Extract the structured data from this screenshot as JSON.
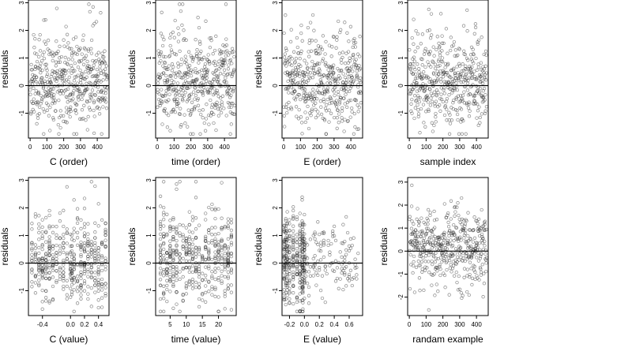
{
  "chart_data": [
    {
      "type": "scatter",
      "xlabel": "C (order)",
      "ylabel": "residuals",
      "xlim": [
        -10,
        470
      ],
      "ylim": [
        -1.9,
        3.1
      ],
      "xticks": [
        0,
        100,
        200,
        300,
        400
      ],
      "xtick_labels": [
        "0",
        "100",
        "200",
        "300",
        "400"
      ],
      "yticks": [
        -1,
        0,
        1,
        2,
        3
      ],
      "ytick_labels": [
        "-1",
        "0",
        "1",
        "2",
        "3"
      ],
      "hline": 0,
      "x_mode": "index",
      "n": 460,
      "seed": 11,
      "x": [],
      "y": []
    },
    {
      "type": "scatter",
      "xlabel": "time (order)",
      "ylabel": "residuals",
      "xlim": [
        -10,
        470
      ],
      "ylim": [
        -1.9,
        3.1
      ],
      "xticks": [
        0,
        100,
        200,
        300,
        400
      ],
      "xtick_labels": [
        "0",
        "100",
        "200",
        "300",
        "400"
      ],
      "yticks": [
        -1,
        0,
        1,
        2,
        3
      ],
      "ytick_labels": [
        "-1",
        "0",
        "1",
        "2",
        "3"
      ],
      "hline": 0,
      "x_mode": "index",
      "n": 460,
      "seed": 23,
      "x": [],
      "y": []
    },
    {
      "type": "scatter",
      "xlabel": "E (order)",
      "ylabel": "residuals",
      "xlim": [
        -10,
        470
      ],
      "ylim": [
        -1.9,
        3.1
      ],
      "xticks": [
        0,
        100,
        200,
        300,
        400
      ],
      "xtick_labels": [
        "0",
        "100",
        "200",
        "300",
        "400"
      ],
      "yticks": [
        -1,
        0,
        1,
        2,
        3
      ],
      "ytick_labels": [
        "-1",
        "0",
        "1",
        "2",
        "3"
      ],
      "hline": 0,
      "x_mode": "index",
      "n": 460,
      "seed": 37,
      "x": [],
      "y": []
    },
    {
      "type": "scatter",
      "xlabel": "sample index",
      "ylabel": "residuals",
      "xlim": [
        -10,
        470
      ],
      "ylim": [
        -1.9,
        3.1
      ],
      "xticks": [
        0,
        100,
        200,
        300,
        400
      ],
      "xtick_labels": [
        "0",
        "100",
        "200",
        "300",
        "400"
      ],
      "yticks": [
        -1,
        0,
        1,
        2,
        3
      ],
      "ytick_labels": [
        "-1",
        "0",
        "1",
        "2",
        "3"
      ],
      "hline": 0,
      "x_mode": "index",
      "n": 460,
      "seed": 41,
      "x": [],
      "y": []
    },
    {
      "type": "scatter",
      "xlabel": "C (value)",
      "ylabel": "residuals",
      "xlim": [
        -0.6,
        0.55
      ],
      "ylim": [
        -1.9,
        3.1
      ],
      "xticks": [
        -0.4,
        0.0,
        0.2,
        0.4
      ],
      "xtick_labels": [
        "-0.4",
        "0.0",
        "0.2",
        "0.4"
      ],
      "yticks": [
        -1,
        0,
        1,
        2,
        3
      ],
      "ytick_labels": [
        "-1",
        "0",
        "1",
        "2",
        "3"
      ],
      "hline": 0,
      "x_mode": "levels",
      "x_levels": [
        -0.55,
        -0.5,
        -0.45,
        -0.4,
        -0.35,
        -0.3,
        -0.25,
        -0.2,
        -0.15,
        -0.1,
        -0.05,
        0.0,
        0.02,
        0.05,
        0.1,
        0.15,
        0.2,
        0.25,
        0.3,
        0.35,
        0.4,
        0.45,
        0.5
      ],
      "n": 460,
      "seed": 53,
      "x": [],
      "y": []
    },
    {
      "type": "scatter",
      "xlabel": "time (value)",
      "ylabel": "residuals",
      "xlim": [
        0.5,
        25.5
      ],
      "ylim": [
        -1.9,
        3.1
      ],
      "xticks": [
        5,
        10,
        15,
        20
      ],
      "xtick_labels": [
        "5",
        "10",
        "15",
        "20"
      ],
      "yticks": [
        -1,
        0,
        1,
        2,
        3
      ],
      "ytick_labels": [
        "-1",
        "0",
        "1",
        "2",
        "3"
      ],
      "hline": 0,
      "x_mode": "levels",
      "x_levels": [
        2,
        3,
        4,
        5,
        6,
        7,
        8,
        9,
        10,
        11,
        12,
        13,
        14,
        15,
        16,
        17,
        18,
        19,
        20,
        21,
        22,
        23,
        24
      ],
      "n": 460,
      "seed": 67,
      "x": [],
      "y": []
    },
    {
      "type": "scatter",
      "xlabel": "E (value)",
      "ylabel": "residuals",
      "xlim": [
        -0.3,
        0.78
      ],
      "ylim": [
        -1.9,
        3.1
      ],
      "xticks": [
        -0.2,
        0.0,
        0.2,
        0.4,
        0.6
      ],
      "xtick_labels": [
        "-0.2",
        "0.0",
        "0.2",
        "0.4",
        "0.6"
      ],
      "yticks": [
        -1,
        0,
        1,
        2,
        3
      ],
      "ytick_labels": [
        "-1",
        "0",
        "1",
        "2",
        "3"
      ],
      "hline": 0,
      "x_mode": "E",
      "n": 460,
      "seed": 79,
      "x": [],
      "y": []
    },
    {
      "type": "scatter",
      "xlabel": "randam example",
      "ylabel": "residuals",
      "xlim": [
        -10,
        470
      ],
      "ylim": [
        -2.8,
        3.2
      ],
      "xticks": [
        0,
        100,
        200,
        300,
        400
      ],
      "xtick_labels": [
        "0",
        "100",
        "200",
        "300",
        "400"
      ],
      "yticks": [
        -2,
        -1,
        0,
        1,
        2,
        3
      ],
      "ytick_labels": [
        "-2",
        "-1",
        "0",
        "1",
        "2",
        "3"
      ],
      "hline": 0,
      "x_mode": "index",
      "n": 460,
      "seed": 97,
      "normal": true,
      "x": [],
      "y": []
    }
  ]
}
